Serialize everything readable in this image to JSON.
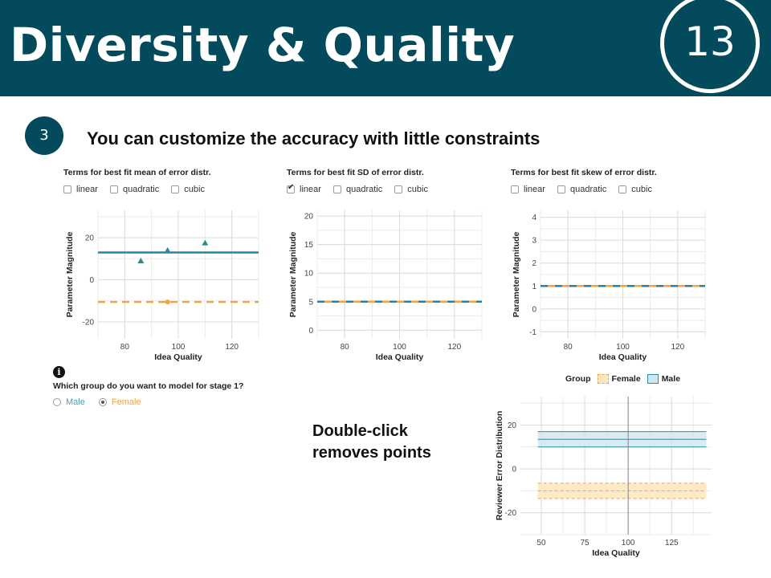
{
  "header": {
    "title": "Diversity & Quality",
    "page_number": "13",
    "background": "#034b5c"
  },
  "step": {
    "number": "3",
    "headline": "You can customize the accuracy with little constraints"
  },
  "panels": [
    {
      "title": "Terms for best fit mean of error distr.",
      "options": [
        {
          "label": "linear",
          "checked": false
        },
        {
          "label": "quadratic",
          "checked": false
        },
        {
          "label": "cubic",
          "checked": false
        }
      ]
    },
    {
      "title": "Terms for best fit SD of error distr.",
      "options": [
        {
          "label": "linear",
          "checked": true
        },
        {
          "label": "quadratic",
          "checked": false
        },
        {
          "label": "cubic",
          "checked": false
        }
      ]
    },
    {
      "title": "Terms for best fit skew of error distr.",
      "options": [
        {
          "label": "linear",
          "checked": false
        },
        {
          "label": "quadratic",
          "checked": false
        },
        {
          "label": "cubic",
          "checked": false
        }
      ]
    }
  ],
  "group_selector": {
    "question": "Which group do you want to model for stage 1?",
    "options": [
      {
        "label": "Male",
        "selected": false,
        "color": "#4a9fc0"
      },
      {
        "label": "Female",
        "selected": true,
        "color": "#f0a640"
      }
    ]
  },
  "note": {
    "line1": "Double-click",
    "line2": "removes points"
  },
  "legend": {
    "title": "Group",
    "items": [
      {
        "label": "Female",
        "color": "#f0a640"
      },
      {
        "label": "Male",
        "color": "#2a8cad"
      }
    ]
  },
  "colors": {
    "male": "#1f86a8",
    "female": "#f0a640"
  },
  "chart_data": [
    {
      "type": "scatter",
      "xlabel": "Idea Quality",
      "ylabel": "Parameter Magnitude",
      "xlim": [
        70,
        130
      ],
      "ylim": [
        -28,
        33
      ],
      "xticks": [
        80,
        100,
        120
      ],
      "yticks": [
        -20,
        0,
        20
      ],
      "grid": true,
      "series": [
        {
          "name": "Male",
          "line": {
            "x": [
              70,
              130
            ],
            "y": [
              13,
              13
            ],
            "style": "solid"
          },
          "points": [
            {
              "x": 86,
              "y": 9
            },
            {
              "x": 96,
              "y": 14
            },
            {
              "x": 110,
              "y": 17.5
            }
          ]
        },
        {
          "name": "Female",
          "line": {
            "x": [
              70,
              130
            ],
            "y": [
              -10.5,
              -10.5
            ],
            "style": "dashed"
          },
          "points": [
            {
              "x": 96,
              "y": -10.5
            }
          ]
        }
      ]
    },
    {
      "type": "line",
      "xlabel": "Idea Quality",
      "ylabel": "Parameter Magnitude",
      "xlim": [
        70,
        130
      ],
      "ylim": [
        -1.5,
        21
      ],
      "xticks": [
        80,
        100,
        120
      ],
      "yticks": [
        0,
        5,
        10,
        15,
        20
      ],
      "grid": true,
      "series": [
        {
          "name": "Female",
          "line": {
            "x": [
              70,
              130
            ],
            "y": [
              5,
              5
            ],
            "style": "solid"
          },
          "points": []
        },
        {
          "name": "Male",
          "line": {
            "x": [
              70,
              130
            ],
            "y": [
              5,
              5
            ],
            "style": "dashed"
          },
          "points": []
        }
      ]
    },
    {
      "type": "line",
      "xlabel": "Idea Quality",
      "ylabel": "Parameter Magnitude",
      "xlim": [
        70,
        130
      ],
      "ylim": [
        -1.3,
        4.3
      ],
      "xticks": [
        80,
        100,
        120
      ],
      "yticks": [
        -1,
        0,
        1,
        2,
        3,
        4
      ],
      "grid": true,
      "series": [
        {
          "name": "Female",
          "line": {
            "x": [
              70,
              130
            ],
            "y": [
              1,
              1
            ],
            "style": "solid"
          },
          "points": []
        },
        {
          "name": "Male",
          "line": {
            "x": [
              70,
              130
            ],
            "y": [
              1,
              1
            ],
            "style": "dashed"
          },
          "points": []
        }
      ]
    },
    {
      "type": "area",
      "xlabel": "Idea Quality",
      "ylabel": "Reviewer Error Distribution",
      "xlim": [
        38,
        148
      ],
      "ylim": [
        -30,
        33
      ],
      "xticks": [
        50,
        75,
        100,
        125
      ],
      "yticks": [
        -20,
        0,
        20
      ],
      "grid": true,
      "vline": 100,
      "series": [
        {
          "name": "Male",
          "x": [
            48,
            145
          ],
          "center": 13.5,
          "band": [
            10,
            17
          ]
        },
        {
          "name": "Female",
          "x": [
            48,
            145
          ],
          "center": -10,
          "band": [
            -13.5,
            -6.5
          ]
        }
      ]
    }
  ]
}
